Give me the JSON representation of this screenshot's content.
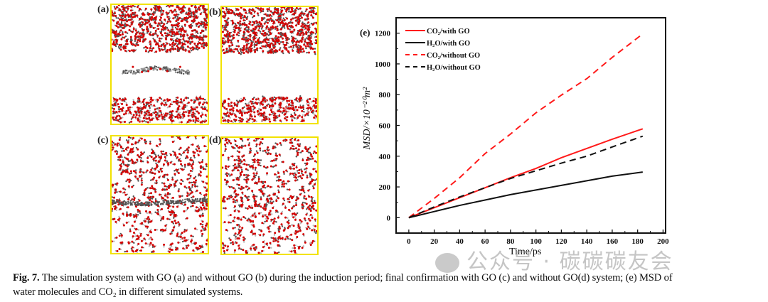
{
  "panels": [
    {
      "label": "(a)",
      "go_sheet": true,
      "state": "induction"
    },
    {
      "label": "(b)",
      "go_sheet": false,
      "state": "induction"
    },
    {
      "label": "(c)",
      "go_sheet": true,
      "state": "final"
    },
    {
      "label": "(d)",
      "go_sheet": false,
      "state": "final"
    }
  ],
  "chart_data": {
    "type": "line",
    "panel_label": "(e)",
    "xlabel": "Time/ps",
    "ylabel": "MSD/×10⁻²⁰m²",
    "xlim": [
      -10,
      202
    ],
    "ylim": [
      -100,
      1300
    ],
    "xticks": [
      0,
      20,
      40,
      60,
      80,
      100,
      120,
      140,
      160,
      180,
      200
    ],
    "yticks": [
      0,
      200,
      400,
      600,
      800,
      1000,
      1200
    ],
    "grid": false,
    "legend_position": "top-left",
    "x": [
      0,
      20,
      40,
      60,
      80,
      100,
      120,
      140,
      160,
      184
    ],
    "series": [
      {
        "name": "CO₂/with GO",
        "color": "#ff1a1a",
        "dash": false,
        "values": [
          0,
          65,
          130,
          195,
          260,
          320,
          390,
          450,
          510,
          578
        ]
      },
      {
        "name": "H₂O/with GO",
        "color": "#111111",
        "dash": false,
        "values": [
          0,
          40,
          80,
          115,
          150,
          180,
          210,
          240,
          270,
          297
        ]
      },
      {
        "name": "CO₂/without GO",
        "color": "#ff1a1a",
        "dash": true,
        "values": [
          0,
          125,
          260,
          417,
          544,
          682,
          797,
          904,
          1042,
          1195
        ]
      },
      {
        "name": "H₂O/without GO",
        "color": "#111111",
        "dash": true,
        "values": [
          0,
          70,
          135,
          195,
          255,
          305,
          355,
          400,
          460,
          530
        ]
      }
    ]
  },
  "caption": {
    "label": "Fig. 7.",
    "line1": "The simulation system with GO (a) and without GO (b) during the induction period; final confirmation with GO (c) and without GO(d) system; (e) MSD of",
    "line2": "water molecules and CO₂ in different simulated systems."
  },
  "watermark": {
    "text": "公众号 · 碳碳碳友会",
    "icon": "wechat-icon"
  }
}
